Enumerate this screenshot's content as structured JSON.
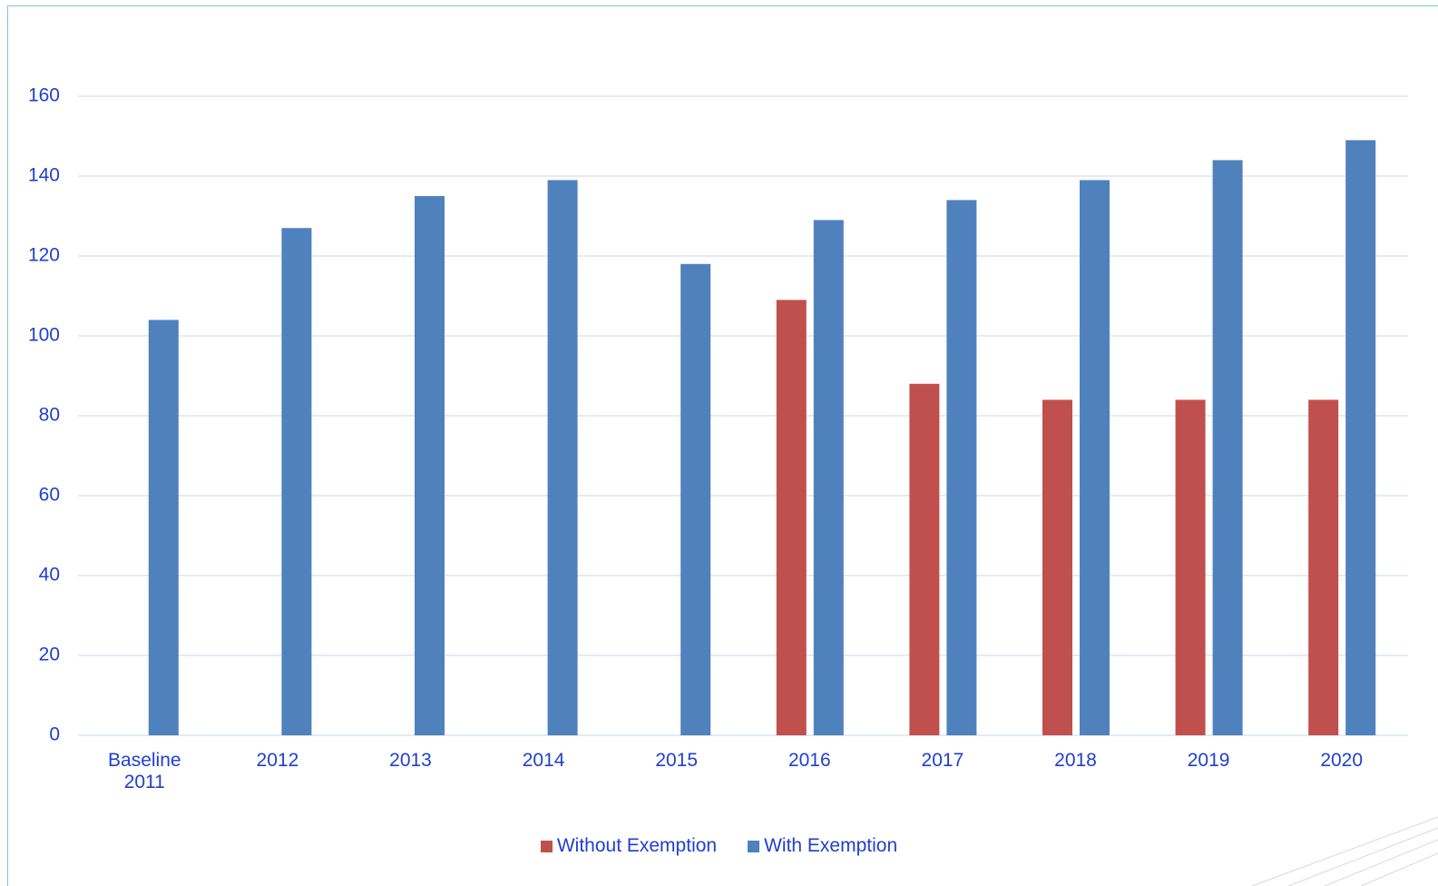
{
  "chart_data": {
    "type": "bar",
    "categories": [
      "Baseline 2011",
      "2012",
      "2013",
      "2014",
      "2015",
      "2016",
      "2017",
      "2018",
      "2019",
      "2020"
    ],
    "series": [
      {
        "name": "Without Exemption",
        "color": "#c0504d",
        "values": [
          null,
          null,
          null,
          null,
          null,
          109,
          88,
          84,
          84,
          84
        ]
      },
      {
        "name": "With Exemption",
        "color": "#4f81bd",
        "values": [
          104,
          127,
          135,
          139,
          118,
          129,
          134,
          139,
          144,
          149
        ]
      }
    ],
    "ylim": [
      0,
      160
    ],
    "yticks": [
      0,
      20,
      40,
      60,
      80,
      100,
      120,
      140,
      160
    ],
    "grid": true,
    "legend": "bottom"
  }
}
